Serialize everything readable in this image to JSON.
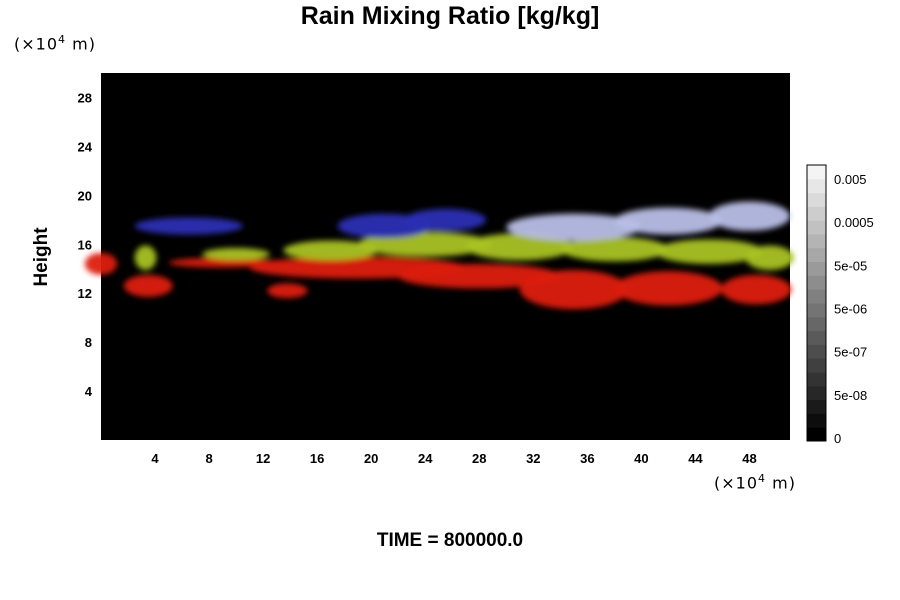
{
  "page": {
    "title": "Rain Mixing Ratio [kg/kg]",
    "time_label": "TIME = 800000.0",
    "x_unit": {
      "prefix": "(×10",
      "exp": "4",
      "suffix": " m)"
    },
    "y_unit": {
      "prefix": "(×10",
      "exp": "4",
      "suffix": " m)"
    }
  },
  "chart_data": {
    "type": "heatmap",
    "title": "Rain Mixing Ratio [kg/kg]",
    "xlabel": "",
    "ylabel": "Height",
    "xlim": [
      0,
      51
    ],
    "ylim": [
      0,
      30
    ],
    "x_ticks": [
      4,
      8,
      12,
      16,
      20,
      24,
      28,
      32,
      36,
      40,
      44,
      48
    ],
    "y_ticks": [
      4,
      8,
      12,
      16,
      20,
      24,
      28
    ],
    "colorbar": {
      "labels": [
        "0.005",
        "0.0005",
        "5e-05",
        "5e-06",
        "5e-07",
        "5e-08",
        "0"
      ],
      "levels": 20,
      "colors": {
        "low": "#000000",
        "high": "#f4f4f4"
      },
      "placement": "right"
    },
    "layers": [
      {
        "color": "#dd1a12",
        "blobs": [
          [
            0,
            14.4,
            1.2,
            0.9
          ],
          [
            3.5,
            12.6,
            1.8,
            0.9
          ],
          [
            13.8,
            12.2,
            1.5,
            0.6
          ],
          [
            19,
            14.1,
            8,
            0.9
          ],
          [
            28,
            13.4,
            6,
            1.0
          ],
          [
            35,
            12.3,
            4,
            1.6
          ],
          [
            42,
            12.4,
            4,
            1.4
          ],
          [
            48.5,
            12.3,
            2.6,
            1.2
          ],
          [
            9,
            14.5,
            4,
            0.4
          ]
        ]
      },
      {
        "color": "#a9c224",
        "blobs": [
          [
            3.3,
            14.9,
            0.8,
            1.0
          ],
          [
            10,
            15.2,
            2.5,
            0.5
          ],
          [
            17,
            15.5,
            3.5,
            0.8
          ],
          [
            24,
            16.0,
            5,
            1.0
          ],
          [
            31,
            15.8,
            4,
            1.1
          ],
          [
            38,
            15.6,
            4,
            1.0
          ],
          [
            45,
            15.4,
            4,
            1.0
          ],
          [
            49.5,
            14.9,
            1.8,
            1.0
          ]
        ]
      },
      {
        "color": "#2a2fb4",
        "blobs": [
          [
            6.5,
            17.5,
            4,
            0.7
          ],
          [
            21,
            17.5,
            3.5,
            1.0
          ],
          [
            25.5,
            18.0,
            3,
            0.9
          ]
        ]
      },
      {
        "color": "#b8bee6",
        "blobs": [
          [
            35,
            17.4,
            5,
            1.1
          ],
          [
            42,
            17.9,
            4,
            1.1
          ],
          [
            48,
            18.3,
            3,
            1.2
          ]
        ]
      }
    ]
  }
}
